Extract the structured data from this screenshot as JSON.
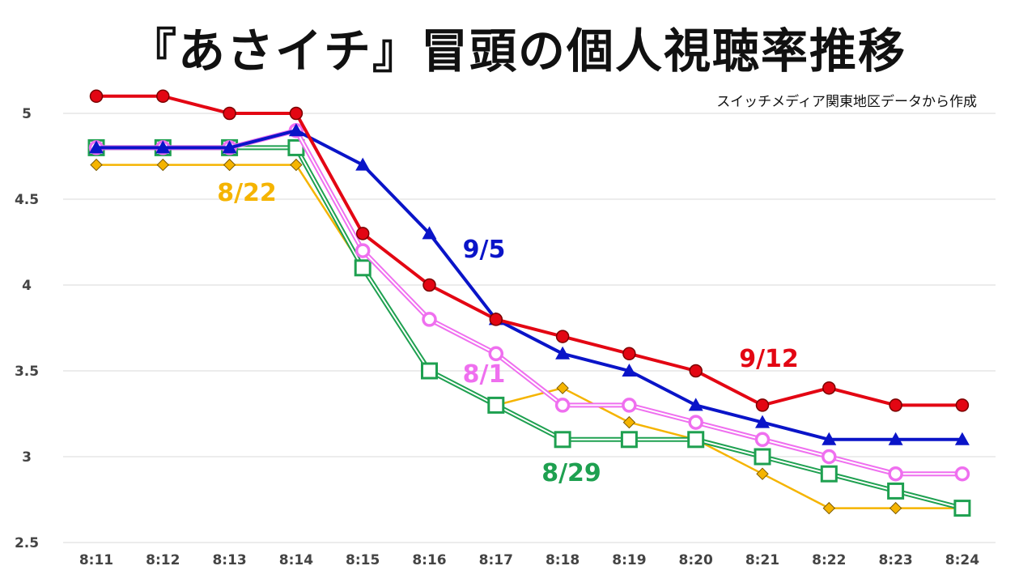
{
  "title": "『あさイチ』冒頭の個人視聴率推移",
  "chart_data": {
    "type": "line",
    "title": "『あさイチ』冒頭の個人視聴率推移",
    "subtitle": "スイッチメディア関東地区データから作成",
    "xlabel": "",
    "ylabel": "",
    "categories": [
      "8:11",
      "8:12",
      "8:13",
      "8:14",
      "8:15",
      "8:16",
      "8:17",
      "8:18",
      "8:19",
      "8:20",
      "8:21",
      "8:22",
      "8:23",
      "8:24"
    ],
    "ylim": [
      2.5,
      5.0
    ],
    "yticks": [
      2.5,
      3.0,
      3.5,
      4.0,
      4.5,
      5.0
    ],
    "ytick_labels": [
      "2.5",
      "3",
      "3.5",
      "4",
      "4.5",
      "5"
    ],
    "grid": "horizontal",
    "series": [
      {
        "name": "9/12",
        "color": "#e30613",
        "marker": "filled-circle",
        "values": [
          5.1,
          5.1,
          5.0,
          5.0,
          4.3,
          4.0,
          3.8,
          3.7,
          3.6,
          3.5,
          3.3,
          3.4,
          3.3,
          3.3
        ]
      },
      {
        "name": "9/5",
        "color": "#0a14c8",
        "marker": "filled-triangle",
        "values": [
          4.8,
          4.8,
          4.8,
          4.9,
          4.7,
          4.3,
          3.8,
          3.6,
          3.5,
          3.3,
          3.2,
          3.1,
          3.1,
          3.1
        ]
      },
      {
        "name": "8/29",
        "color": "#1ea050",
        "marker": "hollow-square",
        "values": [
          4.8,
          4.8,
          4.8,
          4.8,
          4.1,
          3.5,
          3.3,
          3.1,
          3.1,
          3.1,
          3.0,
          2.9,
          2.8,
          2.7
        ]
      },
      {
        "name": "8/22",
        "color": "#f5b400",
        "marker": "filled-diamond",
        "values": [
          4.7,
          4.7,
          4.7,
          4.7,
          4.1,
          3.5,
          3.3,
          3.4,
          3.2,
          3.1,
          2.9,
          2.7,
          2.7,
          2.7
        ]
      },
      {
        "name": "8/1",
        "color": "#ef6fef",
        "marker": "hollow-circle",
        "values": [
          4.8,
          4.8,
          4.8,
          4.9,
          4.2,
          3.8,
          3.6,
          3.3,
          3.3,
          3.2,
          3.1,
          3.0,
          2.9,
          2.9
        ]
      }
    ]
  }
}
